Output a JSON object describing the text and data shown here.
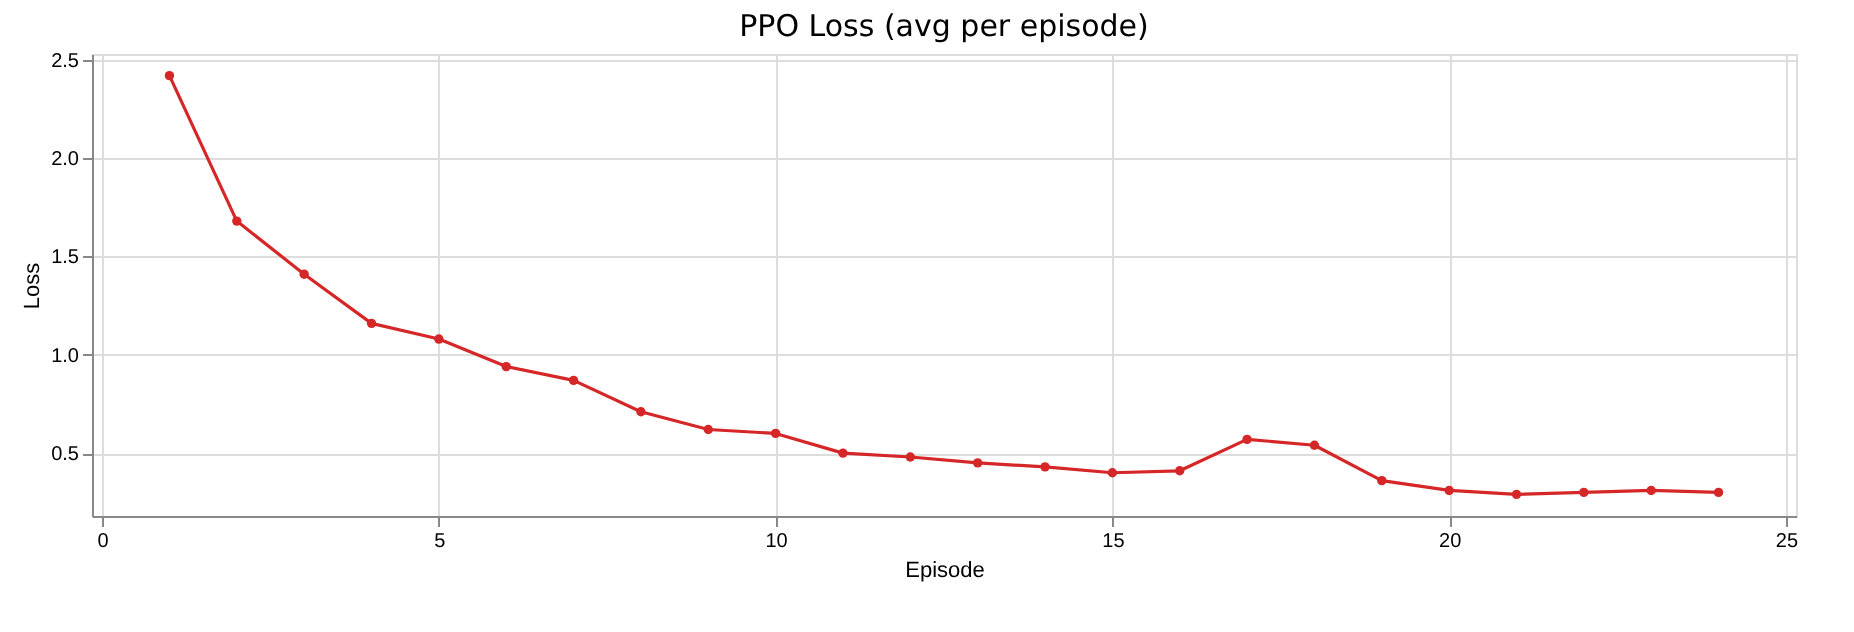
{
  "chart_data": {
    "type": "line",
    "title": "PPO Loss (avg per episode)",
    "xlabel": "Episode",
    "ylabel": "Loss",
    "x": [
      1,
      2,
      3,
      4,
      5,
      6,
      7,
      8,
      9,
      10,
      11,
      12,
      13,
      14,
      15,
      16,
      17,
      18,
      19,
      20,
      21,
      22,
      23,
      24
    ],
    "series": [
      {
        "color": "#d62728",
        "values": [
          2.42,
          1.68,
          1.41,
          1.16,
          1.08,
          0.94,
          0.87,
          0.71,
          0.62,
          0.6,
          0.5,
          0.48,
          0.45,
          0.43,
          0.4,
          0.41,
          0.57,
          0.54,
          0.36,
          0.31,
          0.29,
          0.3,
          0.31,
          0.3
        ]
      }
    ],
    "xlim": [
      -0.15,
      25.15
    ],
    "xticks": [
      0,
      5,
      10,
      15,
      20,
      25
    ],
    "ylim": [
      0.18,
      2.53
    ],
    "yticks": [
      0.5,
      {
        "value": 1,
        "label": "1.0"
      },
      1.5,
      {
        "value": 2,
        "label": "2.0"
      },
      2.5
    ],
    "grid": true,
    "marker": "circle",
    "line_style": "solid"
  }
}
